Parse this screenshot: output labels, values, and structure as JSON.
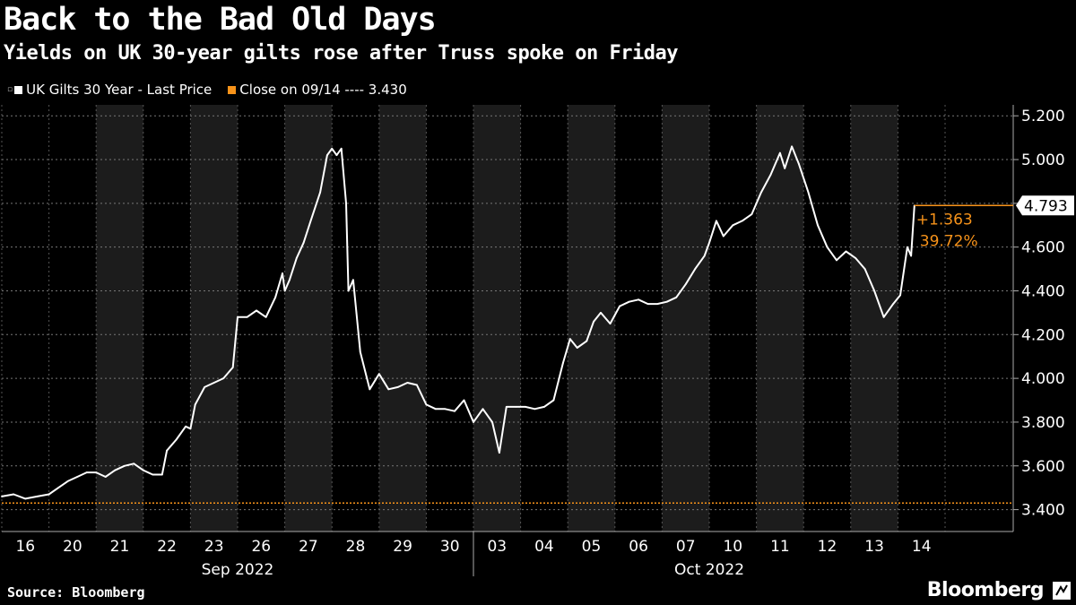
{
  "header": {
    "title": "Back to the Bad Old Days",
    "subtitle": "Yields on UK 30-year gilts rose after Truss spoke on Friday"
  },
  "legend": {
    "series_label": "UK Gilts 30 Year - Last Price",
    "ref_label": "Close on 09/14 ---- 3.430"
  },
  "footer": {
    "source": "Source: Bloomberg",
    "brand": "Bloomberg"
  },
  "colors": {
    "series": "#ffffff",
    "reference": "#f7931a",
    "band": "#1c1c1c",
    "grid": "#777777",
    "axis": "#aaaaaa"
  },
  "chart_data": {
    "type": "line",
    "title": "Back to the Bad Old Days",
    "subtitle": "Yields on UK 30-year gilts rose after Truss spoke on Friday",
    "ylabel": "",
    "ylim": [
      3.3,
      5.25
    ],
    "yticks": [
      3.4,
      3.6,
      3.8,
      4.0,
      4.2,
      4.4,
      4.6,
      4.8,
      5.0,
      5.2
    ],
    "ytick_labels": [
      "3.400",
      "3.600",
      "3.800",
      "4.000",
      "4.200",
      "4.400",
      "4.600",
      "4.800",
      "5.000",
      "5.200"
    ],
    "day_labels": [
      "16",
      "20",
      "21",
      "22",
      "23",
      "26",
      "27",
      "28",
      "29",
      "30",
      "03",
      "04",
      "05",
      "06",
      "07",
      "10",
      "11",
      "12",
      "13",
      "14"
    ],
    "months": [
      {
        "label": "Sep 2022",
        "first_day": 0,
        "last_day": 9
      },
      {
        "label": "Oct 2022",
        "first_day": 10,
        "last_day": 19
      }
    ],
    "shaded_days": [
      2,
      4,
      6,
      8,
      10,
      12,
      14,
      16,
      18
    ],
    "reference": {
      "value": 3.43,
      "label": "Close on 09/14"
    },
    "last_value": "4.793",
    "change_abs": "+1.363",
    "change_pct": "39.72%",
    "series": [
      {
        "name": "UK Gilts 30 Year - Last Price",
        "points": [
          [
            0.0,
            3.46
          ],
          [
            0.25,
            3.47
          ],
          [
            0.5,
            3.45
          ],
          [
            0.75,
            3.46
          ],
          [
            1.0,
            3.47
          ],
          [
            1.2,
            3.5
          ],
          [
            1.4,
            3.53
          ],
          [
            1.6,
            3.55
          ],
          [
            1.8,
            3.57
          ],
          [
            2.0,
            3.57
          ],
          [
            2.2,
            3.55
          ],
          [
            2.4,
            3.58
          ],
          [
            2.6,
            3.6
          ],
          [
            2.8,
            3.61
          ],
          [
            3.0,
            3.58
          ],
          [
            3.2,
            3.56
          ],
          [
            3.4,
            3.56
          ],
          [
            3.5,
            3.67
          ],
          [
            3.7,
            3.72
          ],
          [
            3.9,
            3.78
          ],
          [
            4.0,
            3.77
          ],
          [
            4.1,
            3.88
          ],
          [
            4.3,
            3.96
          ],
          [
            4.5,
            3.98
          ],
          [
            4.7,
            4.0
          ],
          [
            4.9,
            4.05
          ],
          [
            5.0,
            4.28
          ],
          [
            5.2,
            4.28
          ],
          [
            5.4,
            4.31
          ],
          [
            5.6,
            4.28
          ],
          [
            5.8,
            4.37
          ],
          [
            5.95,
            4.48
          ],
          [
            6.0,
            4.4
          ],
          [
            6.1,
            4.45
          ],
          [
            6.25,
            4.55
          ],
          [
            6.4,
            4.62
          ],
          [
            6.55,
            4.72
          ],
          [
            6.75,
            4.85
          ],
          [
            6.9,
            5.02
          ],
          [
            7.0,
            5.05
          ],
          [
            7.1,
            5.02
          ],
          [
            7.2,
            5.05
          ],
          [
            7.3,
            4.8
          ],
          [
            7.35,
            4.4
          ],
          [
            7.45,
            4.45
          ],
          [
            7.6,
            4.12
          ],
          [
            7.8,
            3.95
          ],
          [
            8.0,
            4.02
          ],
          [
            8.2,
            3.95
          ],
          [
            8.4,
            3.96
          ],
          [
            8.6,
            3.98
          ],
          [
            8.8,
            3.97
          ],
          [
            9.0,
            3.88
          ],
          [
            9.2,
            3.86
          ],
          [
            9.4,
            3.86
          ],
          [
            9.6,
            3.85
          ],
          [
            9.8,
            3.9
          ],
          [
            10.0,
            3.8
          ],
          [
            10.2,
            3.86
          ],
          [
            10.4,
            3.8
          ],
          [
            10.55,
            3.66
          ],
          [
            10.7,
            3.87
          ],
          [
            10.9,
            3.87
          ],
          [
            11.1,
            3.87
          ],
          [
            11.3,
            3.86
          ],
          [
            11.5,
            3.87
          ],
          [
            11.7,
            3.9
          ],
          [
            11.9,
            4.07
          ],
          [
            12.05,
            4.18
          ],
          [
            12.2,
            4.14
          ],
          [
            12.4,
            4.17
          ],
          [
            12.55,
            4.26
          ],
          [
            12.7,
            4.3
          ],
          [
            12.9,
            4.25
          ],
          [
            13.1,
            4.33
          ],
          [
            13.3,
            4.35
          ],
          [
            13.5,
            4.36
          ],
          [
            13.7,
            4.34
          ],
          [
            13.9,
            4.34
          ],
          [
            14.1,
            4.35
          ],
          [
            14.3,
            4.37
          ],
          [
            14.5,
            4.43
          ],
          [
            14.7,
            4.5
          ],
          [
            14.9,
            4.56
          ],
          [
            15.0,
            4.62
          ],
          [
            15.15,
            4.72
          ],
          [
            15.3,
            4.65
          ],
          [
            15.5,
            4.7
          ],
          [
            15.7,
            4.72
          ],
          [
            15.9,
            4.75
          ],
          [
            16.1,
            4.85
          ],
          [
            16.3,
            4.93
          ],
          [
            16.5,
            5.03
          ],
          [
            16.6,
            4.96
          ],
          [
            16.75,
            5.06
          ],
          [
            16.9,
            4.98
          ],
          [
            17.1,
            4.85
          ],
          [
            17.3,
            4.7
          ],
          [
            17.5,
            4.6
          ],
          [
            17.7,
            4.54
          ],
          [
            17.9,
            4.58
          ],
          [
            18.1,
            4.55
          ],
          [
            18.3,
            4.5
          ],
          [
            18.5,
            4.4
          ],
          [
            18.7,
            4.28
          ],
          [
            18.9,
            4.34
          ],
          [
            19.05,
            4.38
          ],
          [
            19.2,
            4.6
          ],
          [
            19.28,
            4.56
          ],
          [
            19.35,
            4.79
          ]
        ]
      }
    ]
  }
}
